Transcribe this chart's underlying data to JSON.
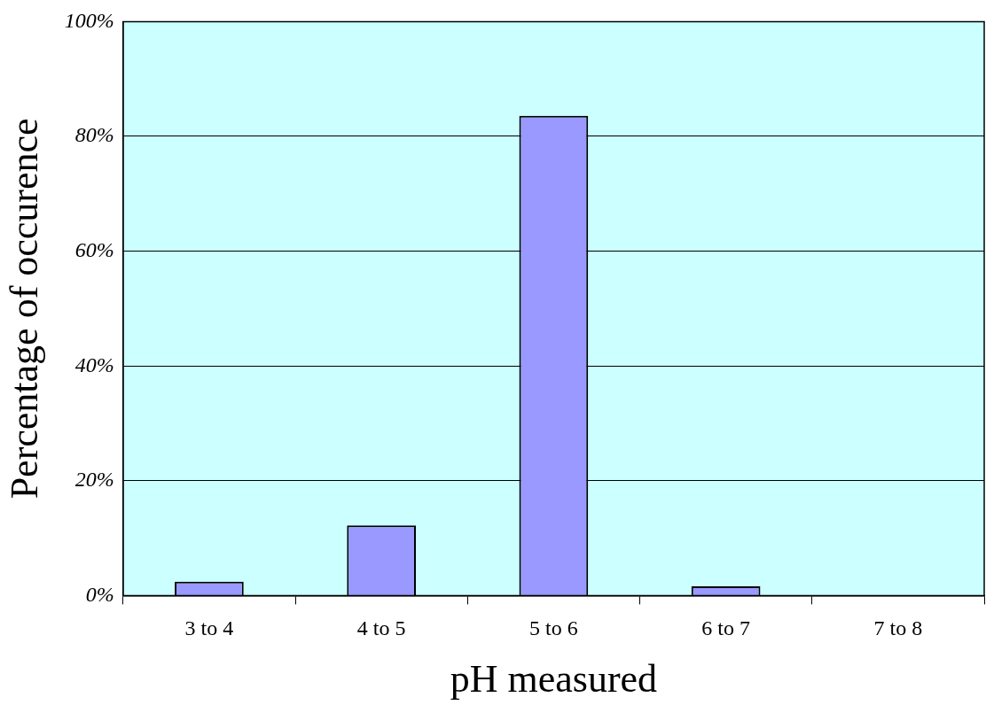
{
  "chart_data": {
    "type": "bar",
    "xlabel": "pH measured",
    "ylabel": "Percentage of occurence",
    "categories": [
      "3 to 4",
      "4 to 5",
      "5 to 6",
      "6 to 7",
      "7 to 8"
    ],
    "values": [
      2.4,
      12.2,
      83.6,
      1.6,
      0
    ],
    "color": "#9999ff",
    "ylim": [
      0,
      100
    ],
    "yticks": [
      {
        "value": 0,
        "label": "0%"
      },
      {
        "value": 20,
        "label": "20%"
      },
      {
        "value": 40,
        "label": "40%"
      },
      {
        "value": 60,
        "label": "60%"
      },
      {
        "value": 80,
        "label": "80%"
      },
      {
        "value": 100,
        "label": "100%"
      }
    ],
    "grid": "y",
    "legend": false
  }
}
